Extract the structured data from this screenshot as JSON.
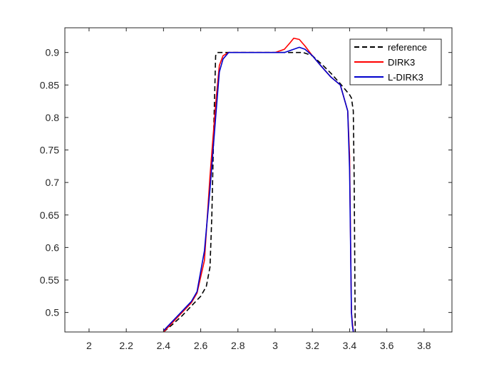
{
  "chart_data": {
    "type": "line",
    "title": "",
    "xlabel": "",
    "ylabel": "",
    "xlim": [
      1.87,
      3.95
    ],
    "ylim": [
      0.47,
      0.938
    ],
    "xticks": [
      "2",
      "2.2",
      "2.4",
      "2.6",
      "2.8",
      "3",
      "3.2",
      "3.4",
      "3.6",
      "3.8"
    ],
    "yticks": [
      "0.5",
      "0.55",
      "0.6",
      "0.65",
      "0.7",
      "0.75",
      "0.8",
      "0.85",
      "0.9"
    ],
    "grid": false,
    "legend_position": "top-right",
    "series": [
      {
        "name": "reference",
        "color": "#000000",
        "style": "dashed",
        "x": [
          2.4,
          2.45,
          2.5,
          2.55,
          2.6,
          2.63,
          2.65,
          2.66,
          2.67,
          2.68,
          2.69,
          2.7,
          2.75,
          2.8,
          2.9,
          3.0,
          3.1,
          3.15,
          3.2,
          3.25,
          3.3,
          3.35,
          3.4,
          3.41,
          3.42,
          3.425,
          3.43
        ],
        "y": [
          0.47,
          0.482,
          0.495,
          0.51,
          0.525,
          0.54,
          0.57,
          0.65,
          0.78,
          0.895,
          0.9,
          0.9,
          0.9,
          0.9,
          0.9,
          0.9,
          0.9,
          0.9,
          0.895,
          0.882,
          0.868,
          0.852,
          0.835,
          0.83,
          0.81,
          0.7,
          0.47
        ]
      },
      {
        "name": "DIRK3",
        "color": "#ff0000",
        "style": "solid",
        "x": [
          2.4,
          2.45,
          2.5,
          2.55,
          2.58,
          2.62,
          2.65,
          2.68,
          2.7,
          2.72,
          2.75,
          2.8,
          2.9,
          3.0,
          3.05,
          3.08,
          3.1,
          3.13,
          3.16,
          3.2,
          3.25,
          3.3,
          3.35,
          3.39,
          3.4,
          3.41,
          3.42
        ],
        "y": [
          0.47,
          0.485,
          0.5,
          0.515,
          0.53,
          0.58,
          0.71,
          0.82,
          0.88,
          0.895,
          0.9,
          0.9,
          0.9,
          0.9,
          0.905,
          0.915,
          0.922,
          0.92,
          0.91,
          0.895,
          0.878,
          0.862,
          0.85,
          0.81,
          0.74,
          0.5,
          0.47
        ]
      },
      {
        "name": "L-DIRK3",
        "color": "#0000cc",
        "style": "solid",
        "x": [
          2.4,
          2.45,
          2.5,
          2.55,
          2.58,
          2.62,
          2.65,
          2.68,
          2.7,
          2.72,
          2.75,
          2.8,
          2.9,
          3.0,
          3.05,
          3.1,
          3.13,
          3.16,
          3.2,
          3.25,
          3.3,
          3.35,
          3.39,
          3.4,
          3.41,
          3.415,
          3.42
        ],
        "y": [
          0.472,
          0.487,
          0.502,
          0.517,
          0.532,
          0.595,
          0.69,
          0.8,
          0.87,
          0.89,
          0.9,
          0.9,
          0.9,
          0.9,
          0.9,
          0.905,
          0.908,
          0.905,
          0.895,
          0.878,
          0.862,
          0.85,
          0.81,
          0.72,
          0.5,
          0.48,
          0.47
        ]
      }
    ]
  }
}
